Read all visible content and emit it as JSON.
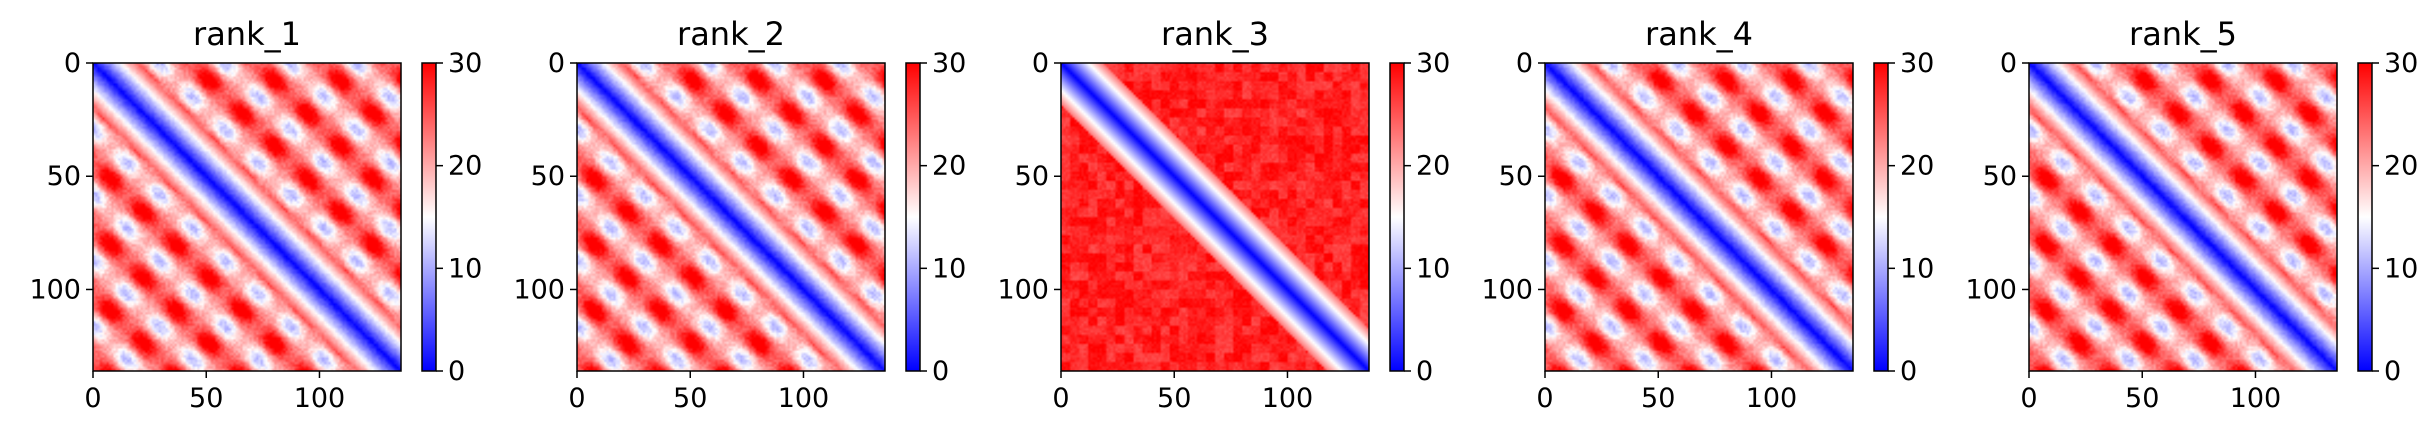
{
  "chart_data": [
    {
      "type": "heatmap",
      "title": "rank_1",
      "pattern": "banded",
      "matrix_size": 136,
      "xlim": [
        0,
        136
      ],
      "ylim": [
        136,
        0
      ],
      "xticks": [
        0,
        50,
        100
      ],
      "xtick_labels": [
        "0",
        "50",
        "100"
      ],
      "yticks": [
        0,
        50,
        100
      ],
      "ytick_labels": [
        "0",
        "50",
        "100"
      ],
      "colormap": "bwr",
      "color_range": [
        0,
        30
      ],
      "colorbar_ticks": [
        0,
        10,
        20,
        30
      ],
      "colorbar_tick_labels": [
        "0",
        "10",
        "20",
        "30"
      ]
    },
    {
      "type": "heatmap",
      "title": "rank_2",
      "pattern": "banded",
      "matrix_size": 136,
      "xlim": [
        0,
        136
      ],
      "ylim": [
        136,
        0
      ],
      "xticks": [
        0,
        50,
        100
      ],
      "xtick_labels": [
        "0",
        "50",
        "100"
      ],
      "yticks": [
        0,
        50,
        100
      ],
      "ytick_labels": [
        "0",
        "50",
        "100"
      ],
      "colormap": "bwr",
      "color_range": [
        0,
        30
      ],
      "colorbar_ticks": [
        0,
        10,
        20,
        30
      ],
      "colorbar_tick_labels": [
        "0",
        "10",
        "20",
        "30"
      ]
    },
    {
      "type": "heatmap",
      "title": "rank_3",
      "pattern": "diagonal-only",
      "matrix_size": 136,
      "xlim": [
        0,
        136
      ],
      "ylim": [
        136,
        0
      ],
      "xticks": [
        0,
        50,
        100
      ],
      "xtick_labels": [
        "0",
        "50",
        "100"
      ],
      "yticks": [
        0,
        50,
        100
      ],
      "ytick_labels": [
        "0",
        "50",
        "100"
      ],
      "colormap": "bwr",
      "color_range": [
        0,
        30
      ],
      "colorbar_ticks": [
        0,
        10,
        20,
        30
      ],
      "colorbar_tick_labels": [
        "0",
        "10",
        "20",
        "30"
      ]
    },
    {
      "type": "heatmap",
      "title": "rank_4",
      "pattern": "banded",
      "matrix_size": 136,
      "xlim": [
        0,
        136
      ],
      "ylim": [
        136,
        0
      ],
      "xticks": [
        0,
        50,
        100
      ],
      "xtick_labels": [
        "0",
        "50",
        "100"
      ],
      "yticks": [
        0,
        50,
        100
      ],
      "ytick_labels": [
        "0",
        "50",
        "100"
      ],
      "colormap": "bwr",
      "color_range": [
        0,
        30
      ],
      "colorbar_ticks": [
        0,
        10,
        20,
        30
      ],
      "colorbar_tick_labels": [
        "0",
        "10",
        "20",
        "30"
      ]
    },
    {
      "type": "heatmap",
      "title": "rank_5",
      "pattern": "banded",
      "matrix_size": 136,
      "xlim": [
        0,
        136
      ],
      "ylim": [
        136,
        0
      ],
      "xticks": [
        0,
        50,
        100
      ],
      "xtick_labels": [
        "0",
        "50",
        "100"
      ],
      "yticks": [
        0,
        50,
        100
      ],
      "ytick_labels": [
        "0",
        "50",
        "100"
      ],
      "colormap": "bwr",
      "color_range": [
        0,
        30
      ],
      "colorbar_ticks": [
        0,
        10,
        20,
        30
      ],
      "colorbar_tick_labels": [
        "0",
        "10",
        "20",
        "30"
      ]
    }
  ],
  "colors": {
    "low": "#0000ff",
    "mid": "#ffffff",
    "high": "#ff0000",
    "axis": "#000000"
  }
}
